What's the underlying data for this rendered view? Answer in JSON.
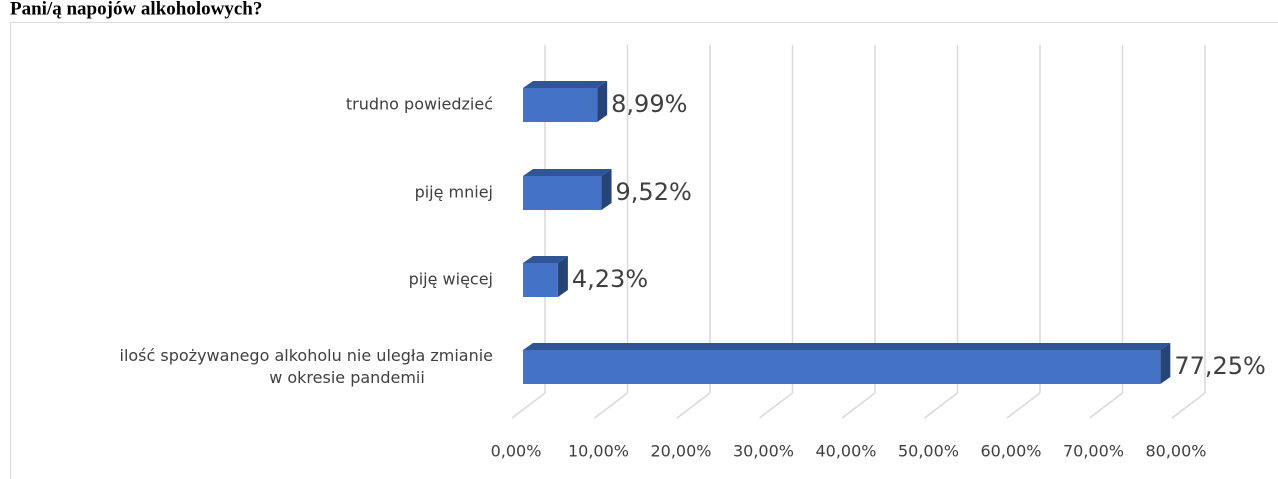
{
  "chart_data": {
    "type": "bar3d_horizontal",
    "title": "Pani/ą napojów alkoholowych?",
    "categories": [
      "ilość spożywanego alkoholu nie uległa zmianie\nw okresie pandemii",
      "piję więcej",
      "piję mniej",
      "trudno powiedzieć"
    ],
    "values": [
      77.25,
      4.23,
      9.52,
      8.99
    ],
    "value_labels": [
      "77,25%",
      "4,23%",
      "9,52%",
      "8,99%"
    ],
    "color": "#4472c4",
    "xlim": [
      0,
      80
    ],
    "xticks": [
      {
        "value": 0,
        "label": "0,00%"
      },
      {
        "value": 10,
        "label": "10,00%"
      },
      {
        "value": 20,
        "label": "20,00%"
      },
      {
        "value": 30,
        "label": "30,00%"
      },
      {
        "value": 40,
        "label": "40,00%"
      },
      {
        "value": 50,
        "label": "50,00%"
      },
      {
        "value": 60,
        "label": "60,00%"
      },
      {
        "value": 70,
        "label": "70,00%"
      },
      {
        "value": 80,
        "label": "80,00%"
      }
    ],
    "grid": true
  }
}
